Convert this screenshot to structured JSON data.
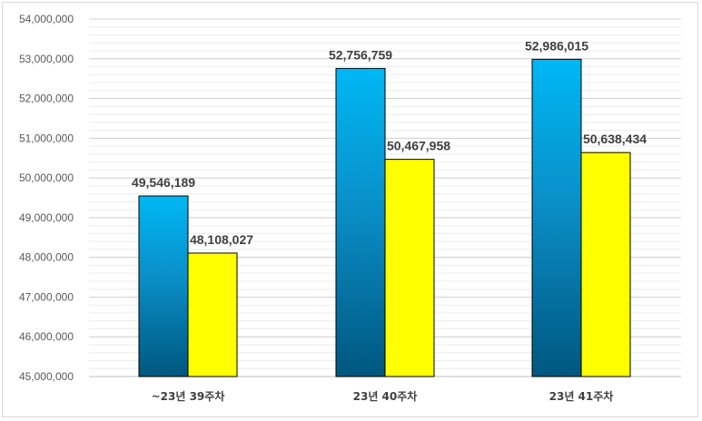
{
  "chart_data": {
    "type": "bar",
    "categories": [
      "~23년 39주차",
      "23년 40주차",
      "23년 41주차"
    ],
    "series": [
      {
        "values": [
          49546189,
          52756759,
          52986015
        ],
        "color": "#00b0f0",
        "labels": [
          "49,546,189",
          "52,756,759",
          "52,986,015"
        ]
      },
      {
        "values": [
          48108027,
          50467958,
          50638434
        ],
        "color": "#ffff00",
        "labels": [
          "48,108,027",
          "50,467,958",
          "50,638,434"
        ]
      }
    ],
    "ylim": [
      45000000,
      54000000
    ],
    "yticks": [
      "45,000,000",
      "46,000,000",
      "47,000,000",
      "48,000,000",
      "49,000,000",
      "50,000,000",
      "51,000,000",
      "52,000,000",
      "53,000,000",
      "54,000,000"
    ],
    "ytick_values": [
      45000000,
      46000000,
      47000000,
      48000000,
      49000000,
      50000000,
      51000000,
      52000000,
      53000000,
      54000000
    ],
    "grid": true,
    "legend": "none"
  }
}
